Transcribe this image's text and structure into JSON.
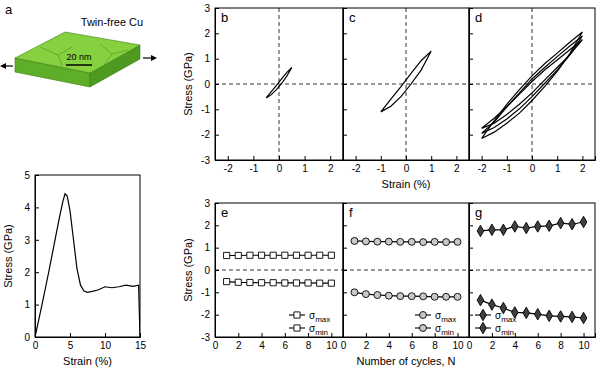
{
  "illustration": {
    "panel": "a",
    "label": "Twin-free Cu",
    "scale_bar": "20 nm"
  },
  "chart_data": [
    {
      "type": "line",
      "xlabel": "Strain (%)",
      "ylabel": "Stress (GPa)",
      "xlim": [
        0,
        15
      ],
      "xticks": [
        0,
        5,
        10,
        15
      ],
      "ylim": [
        0,
        5
      ],
      "yticks": [
        0,
        1,
        2,
        3,
        4,
        5
      ],
      "series": [
        {
          "color": "#000000",
          "line_style": "solid",
          "x": [
            0,
            0.5,
            1,
            1.5,
            2,
            2.5,
            3,
            3.5,
            4,
            4.3,
            4.6,
            5,
            5.5,
            6,
            6.5,
            7,
            7.5,
            8,
            9,
            10,
            11,
            12,
            13,
            14,
            14.8,
            14.9,
            15
          ],
          "values": [
            0,
            0.5,
            1,
            1.52,
            2.05,
            2.6,
            3.15,
            3.7,
            4.2,
            4.42,
            4.35,
            3.9,
            3.0,
            2.1,
            1.6,
            1.42,
            1.38,
            1.4,
            1.45,
            1.55,
            1.52,
            1.55,
            1.6,
            1.56,
            1.6,
            0.8,
            0
          ]
        }
      ]
    },
    {
      "type": "line",
      "panel": "b",
      "ylabel": "Stress (GPa)",
      "xlim": [
        -2.5,
        2.5
      ],
      "xticks": [
        -2,
        -1,
        0,
        1,
        2
      ],
      "ylim": [
        -3,
        3
      ],
      "yticks": [
        -3,
        -2,
        -1,
        0,
        1,
        2,
        3
      ],
      "hlines": [
        0
      ],
      "vlines": [
        0
      ],
      "series": [
        {
          "color": "#000000",
          "line_style": "solid",
          "x": [
            -0.5,
            -0.3,
            -0.1,
            0.1,
            0.3,
            0.5,
            0.3,
            0.1,
            -0.1,
            -0.3,
            -0.5
          ],
          "values": [
            -0.55,
            -0.42,
            -0.22,
            0.02,
            0.3,
            0.65,
            0.45,
            0.2,
            -0.05,
            -0.3,
            -0.55
          ]
        }
      ]
    },
    {
      "type": "line",
      "panel": "c",
      "xlabel": "Strain (%)",
      "tick_labels": "x",
      "xlim": [
        -2.5,
        2.5
      ],
      "xticks": [
        -2,
        -1,
        0,
        1,
        2
      ],
      "ylim": [
        -3,
        3
      ],
      "yticks": [
        -3,
        -2,
        -1,
        0,
        1,
        2,
        3
      ],
      "hlines": [
        0
      ],
      "vlines": [
        0
      ],
      "series": [
        {
          "color": "#000000",
          "line_style": "solid",
          "x": [
            -1,
            -0.6,
            -0.2,
            0.2,
            0.6,
            1,
            0.6,
            0.2,
            -0.2,
            -0.6,
            -1
          ],
          "values": [
            -1.1,
            -0.88,
            -0.5,
            0,
            0.55,
            1.3,
            0.92,
            0.42,
            -0.1,
            -0.6,
            -1.1
          ]
        }
      ]
    },
    {
      "type": "line",
      "panel": "d",
      "tick_labels": "x",
      "xlim": [
        -2.5,
        2.5
      ],
      "xticks": [
        -2,
        -1,
        0,
        1,
        2
      ],
      "ylim": [
        -3,
        3
      ],
      "yticks": [
        -3,
        -2,
        -1,
        0,
        1,
        2,
        3
      ],
      "hlines": [
        0
      ],
      "vlines": [
        0
      ],
      "series": [
        {
          "color": "#000000",
          "line_style": "solid",
          "x": [
            -2,
            -1.5,
            -1,
            -0.5,
            0,
            0.5,
            1,
            1.5,
            2,
            1.5,
            1,
            0.5,
            0,
            -0.5,
            -1,
            -1.5,
            -2
          ],
          "values": [
            -1.75,
            -1.55,
            -1.2,
            -0.8,
            -0.35,
            0.15,
            0.65,
            1.15,
            1.75,
            1.35,
            0.95,
            0.55,
            0.1,
            -0.4,
            -0.9,
            -1.35,
            -1.75
          ]
        },
        {
          "color": "#000000",
          "line_style": "solid",
          "x": [
            -2,
            -1.5,
            -1,
            -0.5,
            0,
            0.5,
            1,
            1.5,
            2,
            1.5,
            1,
            0.5,
            0,
            -0.5,
            -1,
            -1.5,
            -2
          ],
          "values": [
            -1.95,
            -1.72,
            -1.38,
            -0.98,
            -0.5,
            0.02,
            0.55,
            1.15,
            1.9,
            1.5,
            1.08,
            0.65,
            0.2,
            -0.35,
            -0.9,
            -1.5,
            -1.95
          ]
        },
        {
          "color": "#000000",
          "line_style": "solid",
          "x": [
            -2,
            -1.5,
            -1,
            -0.5,
            0,
            0.5,
            1,
            1.5,
            2,
            1.5,
            1,
            0.5,
            0,
            -0.5,
            -1,
            -1.5,
            -2
          ],
          "values": [
            -2.15,
            -1.9,
            -1.55,
            -1.15,
            -0.65,
            -0.1,
            0.5,
            1.2,
            2.05,
            1.65,
            1.22,
            0.8,
            0.32,
            -0.22,
            -0.8,
            -1.45,
            -2.15
          ]
        }
      ]
    },
    {
      "type": "line",
      "panel": "e",
      "ylabel": "Stress (GPa)",
      "legend": "lower right",
      "xlim": [
        0,
        11
      ],
      "xticks": [
        0,
        2,
        4,
        6,
        8,
        10
      ],
      "ylim": [
        -3,
        3
      ],
      "yticks": [
        -3,
        -2,
        -1,
        0,
        1,
        2,
        3
      ],
      "hlines": [
        0
      ],
      "x": [
        1,
        2,
        3,
        4,
        5,
        6,
        7,
        8,
        9,
        10
      ],
      "series": [
        {
          "name": "σmax",
          "color": "#ffffff",
          "marker": "square",
          "line_style": "solid",
          "values": [
            0.65,
            0.65,
            0.66,
            0.66,
            0.66,
            0.66,
            0.66,
            0.66,
            0.66,
            0.66
          ]
        },
        {
          "name": "σmin",
          "color": "#ffffff",
          "marker": "square",
          "line_style": "solid",
          "values": [
            -0.52,
            -0.55,
            -0.56,
            -0.57,
            -0.57,
            -0.58,
            -0.58,
            -0.58,
            -0.59,
            -0.59
          ]
        }
      ]
    },
    {
      "type": "line",
      "panel": "f",
      "xlabel": "Number of cycles, N",
      "tick_labels": "x",
      "legend": "lower right",
      "xlim": [
        0,
        11
      ],
      "xticks": [
        0,
        2,
        4,
        6,
        8,
        10
      ],
      "ylim": [
        -3,
        3
      ],
      "yticks": [
        -3,
        -2,
        -1,
        0,
        1,
        2,
        3
      ],
      "hlines": [
        0
      ],
      "x": [
        1,
        2,
        3,
        4,
        5,
        6,
        7,
        8,
        9,
        10
      ],
      "series": [
        {
          "name": "σmax",
          "color": "#c8c8c8",
          "marker": "circle",
          "line_style": "solid",
          "values": [
            1.3,
            1.28,
            1.27,
            1.27,
            1.26,
            1.26,
            1.25,
            1.26,
            1.25,
            1.26
          ]
        },
        {
          "name": "σmin",
          "color": "#c8c8c8",
          "marker": "circle",
          "line_style": "solid",
          "values": [
            -1.0,
            -1.08,
            -1.12,
            -1.15,
            -1.17,
            -1.17,
            -1.18,
            -1.2,
            -1.2,
            -1.2
          ]
        }
      ]
    },
    {
      "type": "line",
      "panel": "g",
      "tick_labels": "x",
      "legend": "lower left",
      "xlim": [
        0,
        11
      ],
      "xticks": [
        0,
        2,
        4,
        6,
        8,
        10
      ],
      "ylim": [
        -3,
        3
      ],
      "yticks": [
        -3,
        -2,
        -1,
        0,
        1,
        2,
        3
      ],
      "hlines": [
        0
      ],
      "x": [
        1,
        2,
        3,
        4,
        5,
        6,
        7,
        8,
        9,
        10
      ],
      "series": [
        {
          "name": "σmax",
          "color": "#404040",
          "marker": "diamond",
          "line_style": "solid",
          "values": [
            1.75,
            1.8,
            1.8,
            1.95,
            1.88,
            1.95,
            1.98,
            2.1,
            2.05,
            2.15
          ]
        },
        {
          "name": "σmin",
          "color": "#404040",
          "marker": "diamond",
          "line_style": "solid",
          "values": [
            -1.35,
            -1.55,
            -1.7,
            -1.9,
            -1.92,
            -1.98,
            -2.05,
            -2.08,
            -2.1,
            -2.15
          ]
        }
      ]
    }
  ]
}
